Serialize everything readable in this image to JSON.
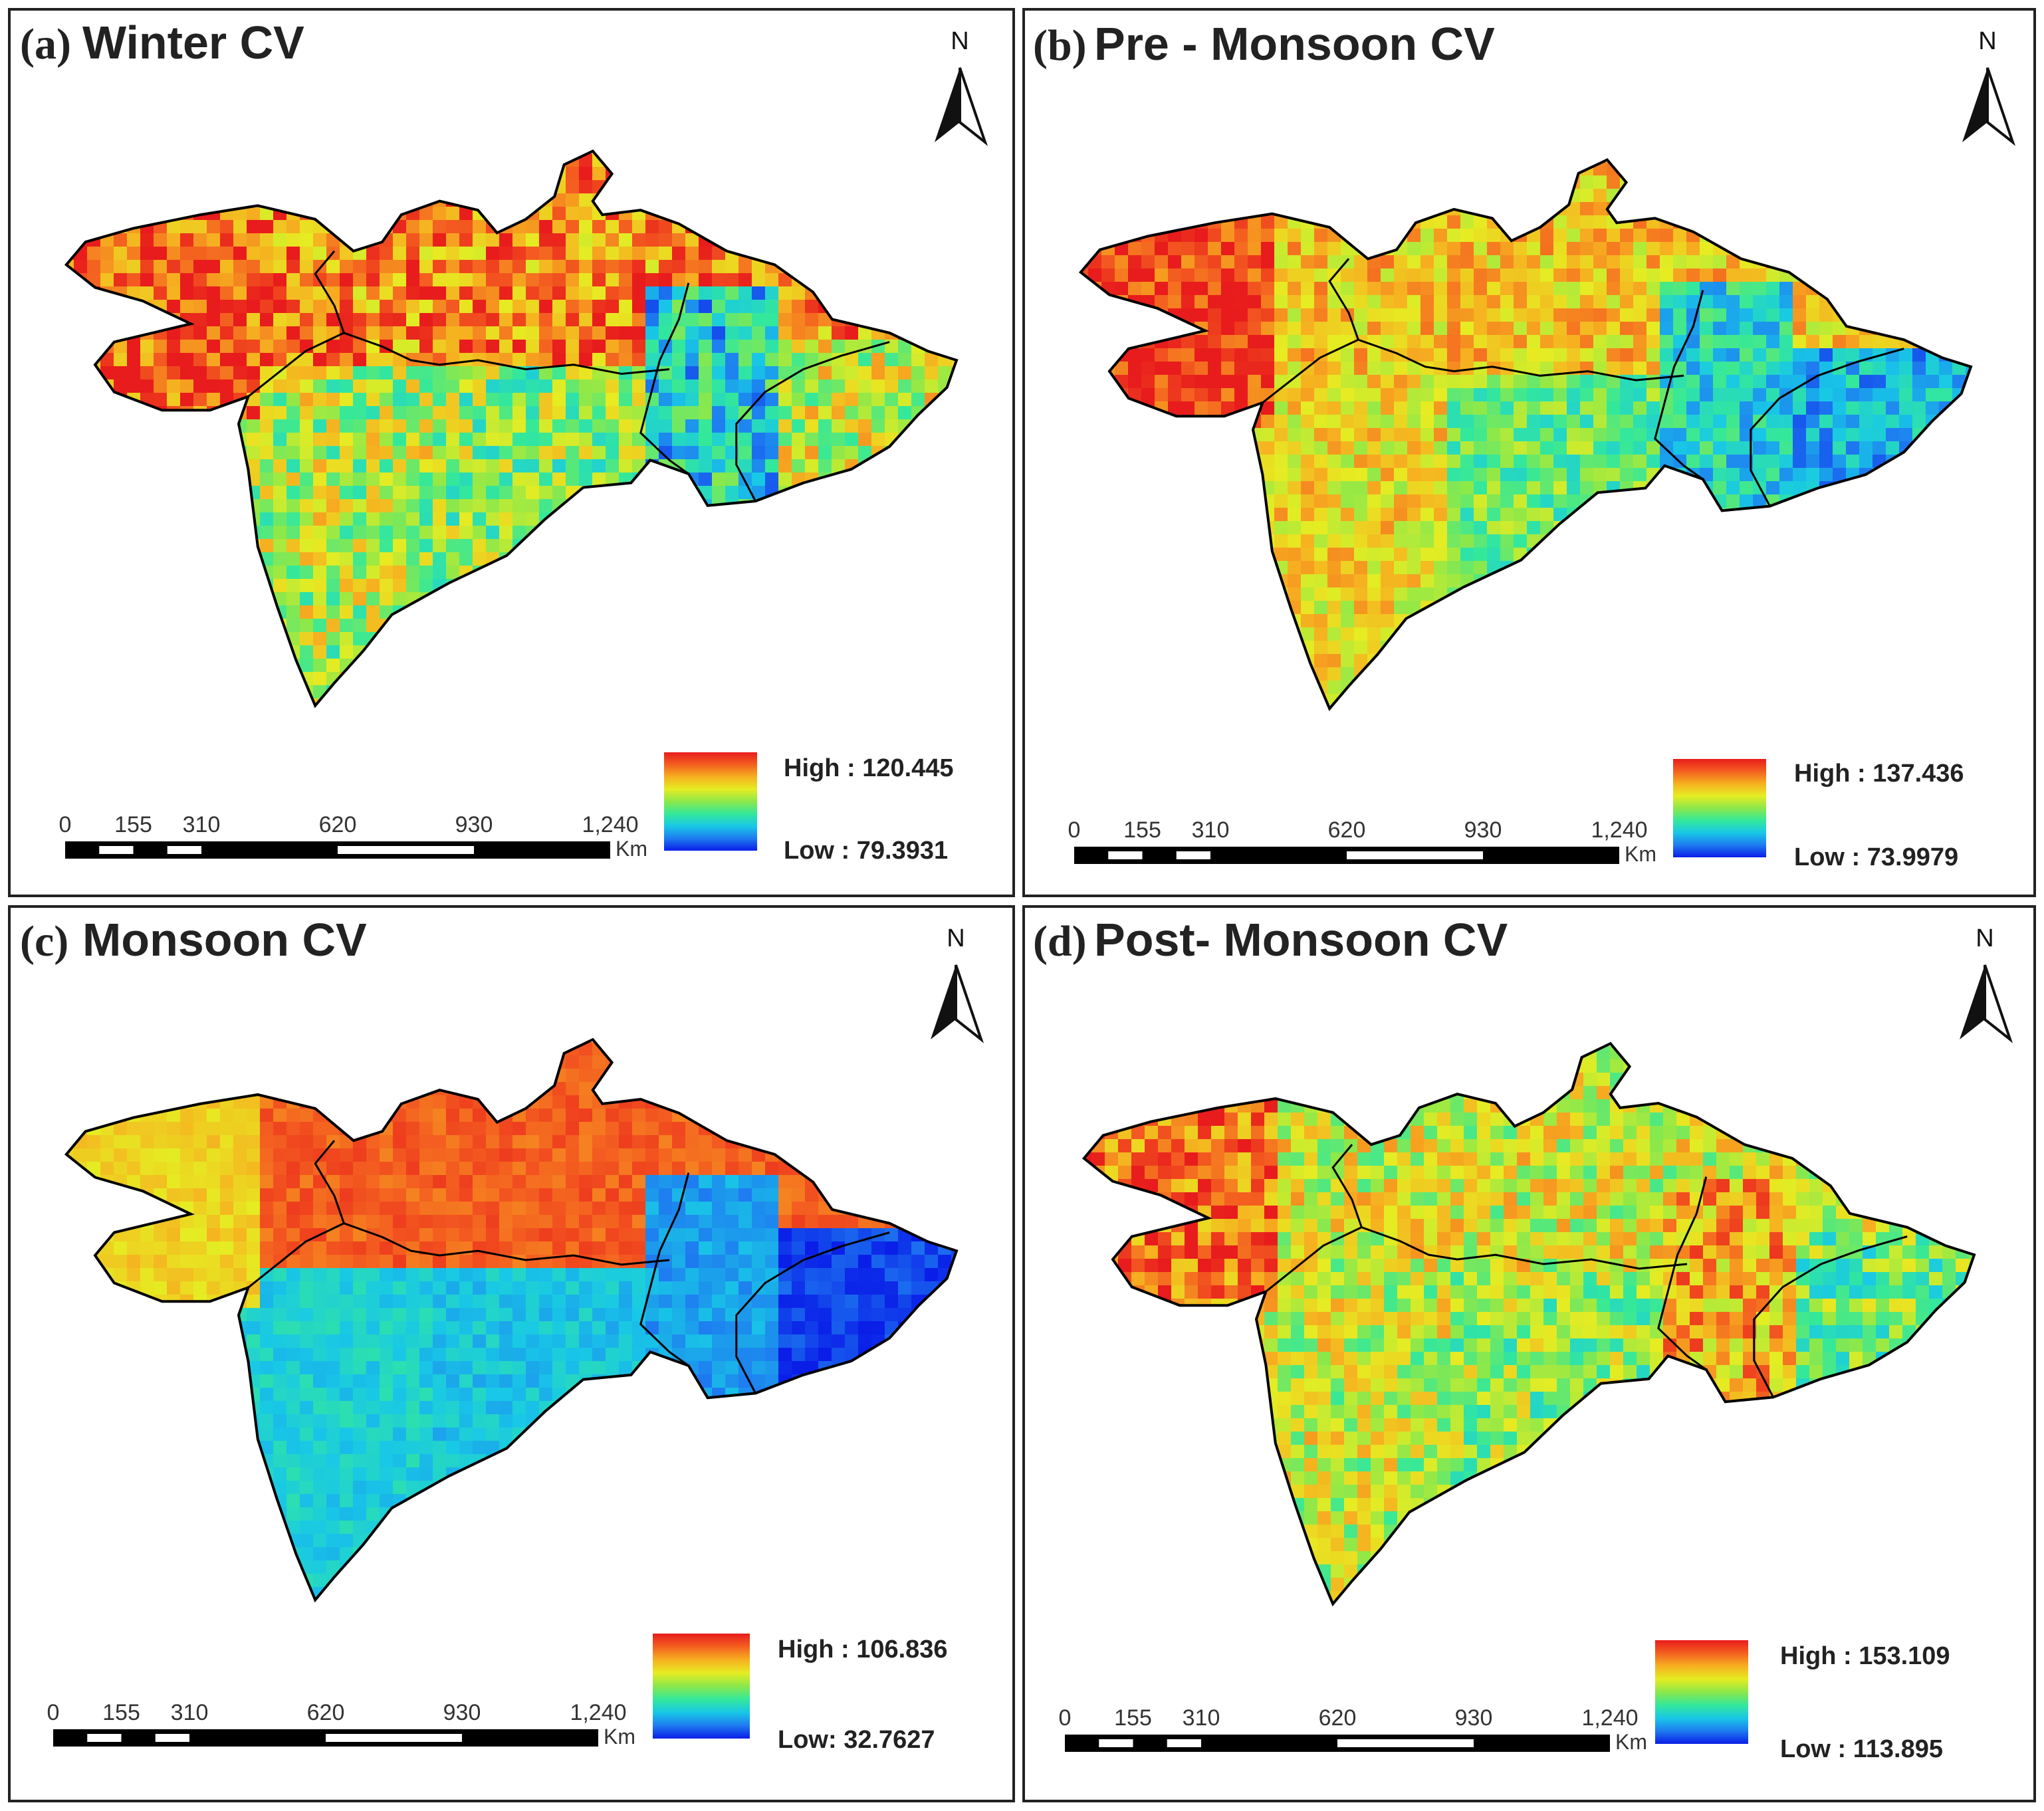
{
  "colors": {
    "ramp": [
      "#0a1ee8",
      "#1e7cf0",
      "#18c8e6",
      "#34e89a",
      "#8ce84a",
      "#e6ec22",
      "#f6b020",
      "#f46020",
      "#e81c1c"
    ],
    "border": "#222222",
    "outline": "#000000"
  },
  "panels": [
    {
      "prefix": "(a)",
      "title": "Winter CV",
      "north": "N",
      "legend": {
        "high": "High : 120.445",
        "low": "Low : 79.3931"
      },
      "scale": {
        "ticks": [
          "0",
          "155",
          "310",
          "620",
          "930",
          "1,240"
        ],
        "unit": "Km"
      },
      "pattern": {
        "w": 0.82,
        "gu": 0.9,
        "mh": 0.55,
        "ch": 0.28,
        "od": 0.58,
        "mhEast": 0.5,
        "amp": 0.22,
        "seed": 11
      }
    },
    {
      "prefix": "(b)",
      "title": "Pre - Monsoon CV",
      "north": "N",
      "legend": {
        "high": "High : 137.436",
        "low": "Low : 73.9979"
      },
      "scale": {
        "ticks": [
          "0",
          "155",
          "310",
          "620",
          "930",
          "1,240"
        ],
        "unit": "Km"
      },
      "pattern": {
        "w": 0.7,
        "gu": 0.93,
        "mh": 0.66,
        "ch": 0.3,
        "od": 0.22,
        "mhEast": 0.45,
        "amp": 0.15,
        "seed": 23
      }
    },
    {
      "prefix": "(c)",
      "title": "Monsoon CV",
      "north": "N",
      "legend": {
        "high": "High : 106.836",
        "low": "Low: 32.7627"
      },
      "scale": {
        "ticks": [
          "0",
          "155",
          "310",
          "620",
          "930",
          "1,240"
        ],
        "unit": "Km"
      },
      "pattern": {
        "w": 0.88,
        "gu": 0.68,
        "mh": 0.28,
        "ch": 0.18,
        "od": 0.05,
        "mhEast": 0.25,
        "amp": 0.06,
        "seed": 37
      }
    },
    {
      "prefix": "(d)",
      "title": "Post- Monsoon CV",
      "north": "N",
      "legend": {
        "high": "High : 153.109",
        "low": "Low : 113.895"
      },
      "scale": {
        "ticks": [
          "0",
          "155",
          "310",
          "620",
          "930",
          "1,240"
        ],
        "unit": "Km"
      },
      "pattern": {
        "w": 0.6,
        "gu": 0.86,
        "mh": 0.58,
        "ch": 0.75,
        "od": 0.45,
        "mhEast": 0.5,
        "amp": 0.2,
        "seed": 53
      }
    }
  ]
}
